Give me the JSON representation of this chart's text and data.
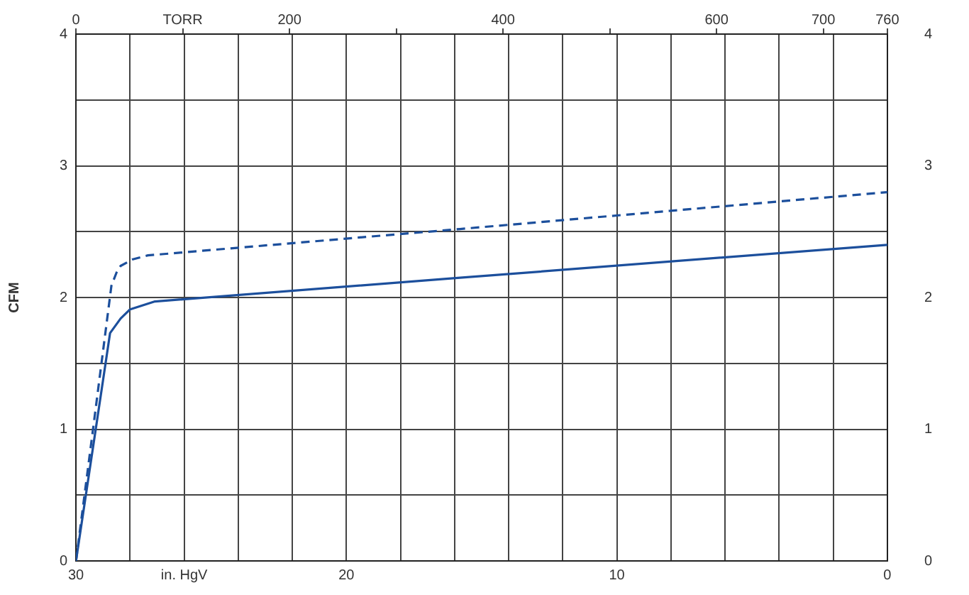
{
  "chart_data": {
    "type": "line",
    "ylabel": "CFM",
    "xlim": [
      30,
      0
    ],
    "xticks": [
      30,
      {
        "value": 28,
        "label": null
      },
      {
        "value": 26,
        "label": "in. HgV"
      },
      {
        "value": 24,
        "label": null
      },
      {
        "value": 22,
        "label": null
      },
      20,
      {
        "value": 18,
        "label": null
      },
      {
        "value": 16,
        "label": null
      },
      {
        "value": 14,
        "label": null
      },
      {
        "value": 12,
        "label": null
      },
      10,
      {
        "value": 8,
        "label": null
      },
      {
        "value": 6,
        "label": null
      },
      {
        "value": 4,
        "label": null
      },
      {
        "value": 2,
        "label": null
      },
      0
    ],
    "x2lim": [
      0,
      760
    ],
    "x2ticks": [
      0,
      {
        "value": 100,
        "label": "TORR"
      },
      200,
      {
        "value": 300,
        "label": null
      },
      400,
      {
        "value": 500,
        "label": null
      },
      600,
      700,
      760
    ],
    "ylim": [
      0,
      4
    ],
    "yticks": [
      0,
      {
        "value": 0.5,
        "label": null
      },
      1,
      {
        "value": 1.5,
        "label": null
      },
      2,
      {
        "value": 2.5,
        "label": null
      },
      3,
      {
        "value": 3.5,
        "label": null
      },
      4
    ],
    "y2lim": [
      0,
      4
    ],
    "y2ticks": [
      0,
      1,
      2,
      3,
      4
    ],
    "grid": true,
    "marker": "none",
    "series": [
      {
        "color": "#1c4f9c",
        "line_style": "solid",
        "x": [
          30,
          29.27,
          28.74,
          28.35,
          28.0,
          27.08,
          15.8,
          0
        ],
        "values": [
          0,
          1,
          1.73,
          1.84,
          1.91,
          1.97,
          2.15,
          2.4
        ]
      },
      {
        "color": "#1c4f9c",
        "line_style": "dashed",
        "x": [
          30,
          29.37,
          28.69,
          28.5,
          28.35,
          27.9,
          27.34,
          15.8,
          0
        ],
        "values": [
          0,
          1,
          2.09,
          2.19,
          2.24,
          2.29,
          2.32,
          2.52,
          2.8
        ]
      }
    ]
  }
}
